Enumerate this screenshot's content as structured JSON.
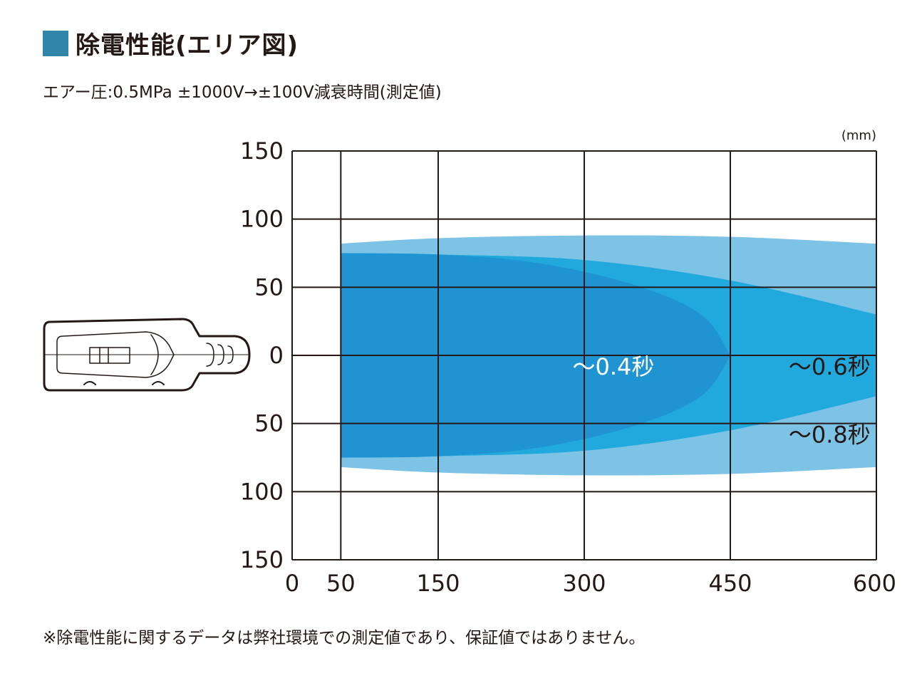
{
  "header": {
    "title": "除電性能(エリア図)",
    "subtitle": "エアー圧:0.5MPa ±1000V→±100V減衰時間(測定値)"
  },
  "footnote": "※除電性能に関するデータは弊社環境での測定値であり、保証値ではありません。",
  "colors": {
    "title_square": "#2f86a8",
    "zone_0_8": "#7cc3e6",
    "zone_0_6": "#21a9dd",
    "zone_0_4": "#2093d2",
    "grid": "#231815"
  },
  "device_icon": "ionizer-nozzle-outline-icon",
  "chart_data": {
    "type": "area",
    "unit": "(mm)",
    "x_ticks": [
      "0",
      "50",
      "150",
      "300",
      "450",
      "600"
    ],
    "x_tick_values": [
      0,
      50,
      150,
      300,
      450,
      600
    ],
    "y_ticks": [
      "150",
      "100",
      "50",
      "0",
      "50",
      "100",
      "150"
    ],
    "y_tick_values": [
      150,
      100,
      50,
      0,
      -50,
      -100,
      -150
    ],
    "xlim": [
      0,
      600
    ],
    "ylim": [
      -150,
      150
    ],
    "grid": true,
    "series": [
      {
        "name": "〜0.8秒",
        "color": "#7cc3e6",
        "upper": [
          [
            50,
            82
          ],
          [
            150,
            86
          ],
          [
            300,
            88
          ],
          [
            450,
            87
          ],
          [
            600,
            82
          ]
        ],
        "lower": [
          [
            50,
            -82
          ],
          [
            150,
            -86
          ],
          [
            300,
            -88
          ],
          [
            450,
            -87
          ],
          [
            600,
            -82
          ]
        ]
      },
      {
        "name": "〜0.6秒",
        "color": "#21a9dd",
        "upper": [
          [
            50,
            75
          ],
          [
            150,
            74
          ],
          [
            300,
            70
          ],
          [
            450,
            55
          ],
          [
            600,
            30
          ]
        ],
        "lower": [
          [
            50,
            -75
          ],
          [
            150,
            -74
          ],
          [
            300,
            -70
          ],
          [
            450,
            -55
          ],
          [
            600,
            -30
          ]
        ]
      },
      {
        "name": "〜0.4秒",
        "color": "#2093d2",
        "upper": [
          [
            50,
            75
          ],
          [
            150,
            74
          ],
          [
            250,
            68
          ],
          [
            350,
            52
          ],
          [
            420,
            30
          ],
          [
            450,
            0
          ]
        ],
        "lower": [
          [
            50,
            -75
          ],
          [
            150,
            -74
          ],
          [
            250,
            -68
          ],
          [
            350,
            -52
          ],
          [
            420,
            -30
          ],
          [
            450,
            0
          ]
        ]
      }
    ],
    "labels": [
      {
        "text": "〜0.4秒",
        "x": 372,
        "y": -14,
        "color": "#ffffff"
      },
      {
        "text": "〜0.6秒",
        "x": 594,
        "y": -14,
        "color": "#231815"
      },
      {
        "text": "〜0.8秒",
        "x": 594,
        "y": -64,
        "color": "#231815"
      }
    ]
  }
}
